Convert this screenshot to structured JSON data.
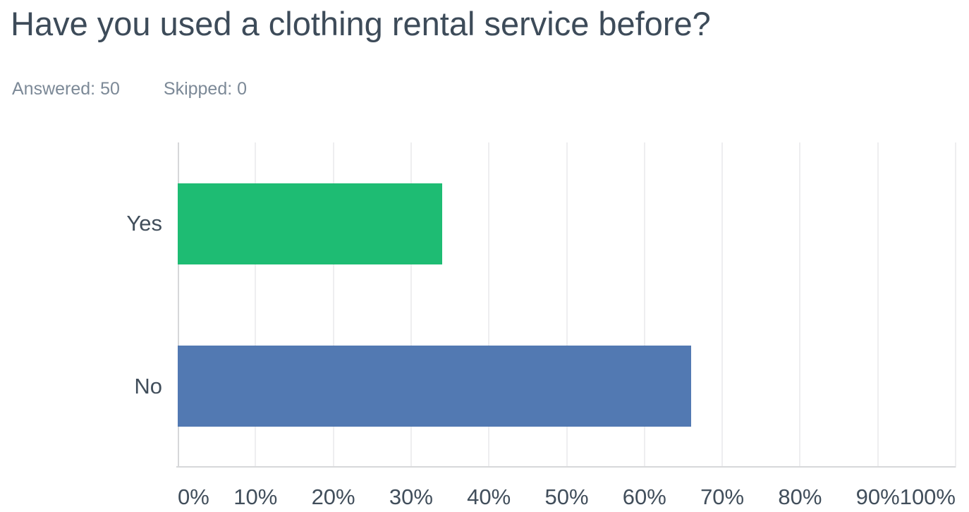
{
  "page": {
    "title": "Have you used a clothing rental service before?",
    "stats": {
      "answered_label": "Answered:",
      "answered_value": "50",
      "skipped_label": "Skipped:",
      "skipped_value": "0"
    }
  },
  "colors": {
    "title_text": "#3D4B59",
    "meta_text": "#7C8997",
    "axis_text": "#414E5B",
    "gridline": "#EEEEF0",
    "axis_line": "#D6D7D9",
    "bar_yes": "#1EBC73",
    "bar_no": "#5279B2"
  },
  "chart_data": {
    "type": "bar",
    "orientation": "horizontal",
    "title": "Have you used a clothing rental service before?",
    "answered": 50,
    "skipped": 0,
    "categories": [
      "Yes",
      "No"
    ],
    "values": [
      34,
      66
    ],
    "unit": "%",
    "xlabel": "",
    "ylabel": "",
    "xlim": [
      0,
      100
    ],
    "xticks": [
      "0%",
      "10%",
      "20%",
      "30%",
      "40%",
      "50%",
      "60%",
      "70%",
      "80%",
      "90%",
      "100%"
    ],
    "grid": true,
    "legend_position": "none",
    "bar_colors": [
      "#1EBC73",
      "#5279B2"
    ]
  }
}
